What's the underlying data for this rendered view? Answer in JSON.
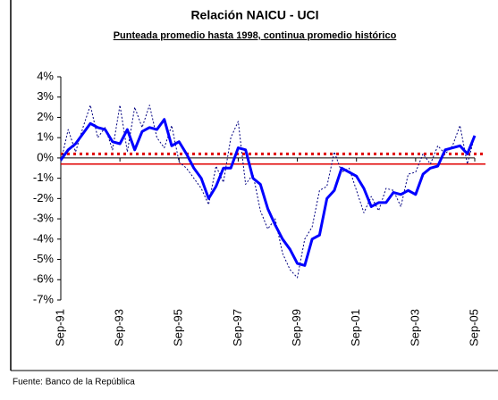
{
  "chart_data": {
    "type": "line",
    "title": "Relación NAICU - UCI",
    "subtitle": "Punteada promedio hasta 1998, continua promedio histórico",
    "source": "Fuente: Banco de la República",
    "categories": [
      "Sep-91",
      null,
      null,
      null,
      null,
      null,
      null,
      null,
      "Sep-93",
      null,
      null,
      null,
      null,
      null,
      null,
      null,
      "Sep-95",
      null,
      null,
      null,
      null,
      null,
      null,
      null,
      "Sep-97",
      null,
      null,
      null,
      null,
      null,
      null,
      null,
      "Sep-99",
      null,
      null,
      null,
      null,
      null,
      null,
      null,
      "Sep-01",
      null,
      null,
      null,
      null,
      null,
      null,
      null,
      "Sep-03",
      null,
      null,
      null,
      null,
      null,
      null,
      null,
      "Sep-05"
    ],
    "series": [
      {
        "color": "#0000ff",
        "style": "solid",
        "values": [
          -0.1,
          0.4,
          0.7,
          1.2,
          1.7,
          1.5,
          1.4,
          0.8,
          0.7,
          1.4,
          0.4,
          1.3,
          1.5,
          1.4,
          1.9,
          0.6,
          0.8,
          0.2,
          -0.5,
          -1.0,
          -2.0,
          -1.4,
          -0.5,
          -0.5,
          0.5,
          0.4,
          -1.0,
          -1.3,
          -2.5,
          -3.3,
          -4.0,
          -4.5,
          -5.2,
          -5.3,
          -4.0,
          -3.8,
          -2.0,
          -1.6,
          -0.5,
          -0.7,
          -0.9,
          -1.5,
          -2.4,
          -2.2,
          -2.2,
          -1.7,
          -1.8,
          -1.6,
          -1.8,
          -0.8,
          -0.5,
          -0.4,
          0.4,
          0.5,
          0.6,
          0.2,
          1.1
        ]
      },
      {
        "color": "#000080",
        "style": "dotted",
        "values": [
          -0.2,
          1.4,
          0.3,
          1.5,
          2.6,
          1.0,
          1.5,
          0.4,
          2.6,
          0.3,
          2.5,
          1.5,
          2.6,
          1.0,
          0.5,
          1.6,
          -0.2,
          -0.5,
          -1.0,
          -1.5,
          -2.3,
          -0.4,
          -1.2,
          1.0,
          1.8,
          -1.3,
          -0.8,
          -2.6,
          -3.5,
          -3.0,
          -4.7,
          -5.5,
          -5.9,
          -4.0,
          -3.4,
          -1.6,
          -1.4,
          0.3,
          -0.7,
          -0.5,
          -1.6,
          -2.7,
          -1.9,
          -2.6,
          -1.5,
          -1.6,
          -2.4,
          -0.8,
          -0.7,
          0.2,
          -0.3,
          0.6,
          0.2,
          0.6,
          1.6,
          -0.3,
          1.1
        ]
      }
    ],
    "reference_lines": [
      {
        "value": 0.2,
        "style": "dotted",
        "color": "#e00000"
      },
      {
        "value": -0.3,
        "style": "solid",
        "color": "#e00000"
      }
    ],
    "ylim": [
      -7,
      4
    ],
    "yticks": [
      {
        "value": -7,
        "label": "-7%"
      },
      {
        "value": -6,
        "label": "-6%"
      },
      {
        "value": -5,
        "label": "-5%"
      },
      {
        "value": -4,
        "label": "-4%"
      },
      {
        "value": -3,
        "label": "-3%"
      },
      {
        "value": -2,
        "label": "-2%"
      },
      {
        "value": -1,
        "label": "-1%"
      },
      {
        "value": 0,
        "label": "0%"
      },
      {
        "value": 1,
        "label": "1%"
      },
      {
        "value": 2,
        "label": "2%"
      },
      {
        "value": 3,
        "label": "3%"
      },
      {
        "value": 4,
        "label": "4%"
      }
    ],
    "grid": false
  }
}
